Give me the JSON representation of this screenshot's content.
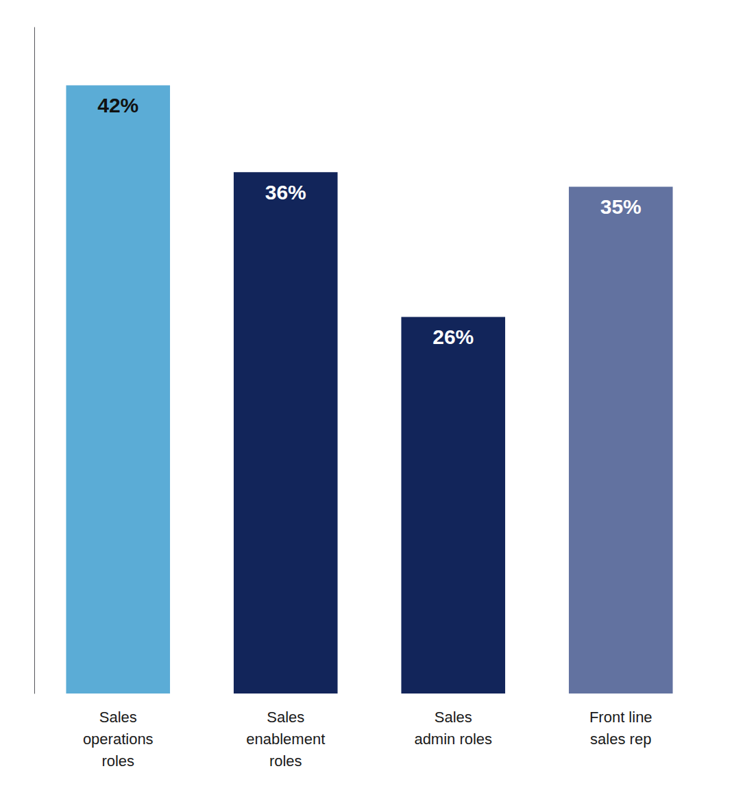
{
  "chart_data": {
    "type": "bar",
    "categories": [
      "Sales\noperations\nroles",
      "Sales\nenablement\nroles",
      "Sales\nadmin roles",
      "Front line\nsales rep"
    ],
    "values": [
      42,
      36,
      26,
      35
    ],
    "value_labels": [
      "42%",
      "36%",
      "26%",
      "35%"
    ],
    "colors": [
      "#5BACD6",
      "#12255A",
      "#12255A",
      "#6272A0"
    ],
    "ylim": [
      0,
      46
    ],
    "grid": false,
    "data_labels": true,
    "tick_labels": "x"
  }
}
